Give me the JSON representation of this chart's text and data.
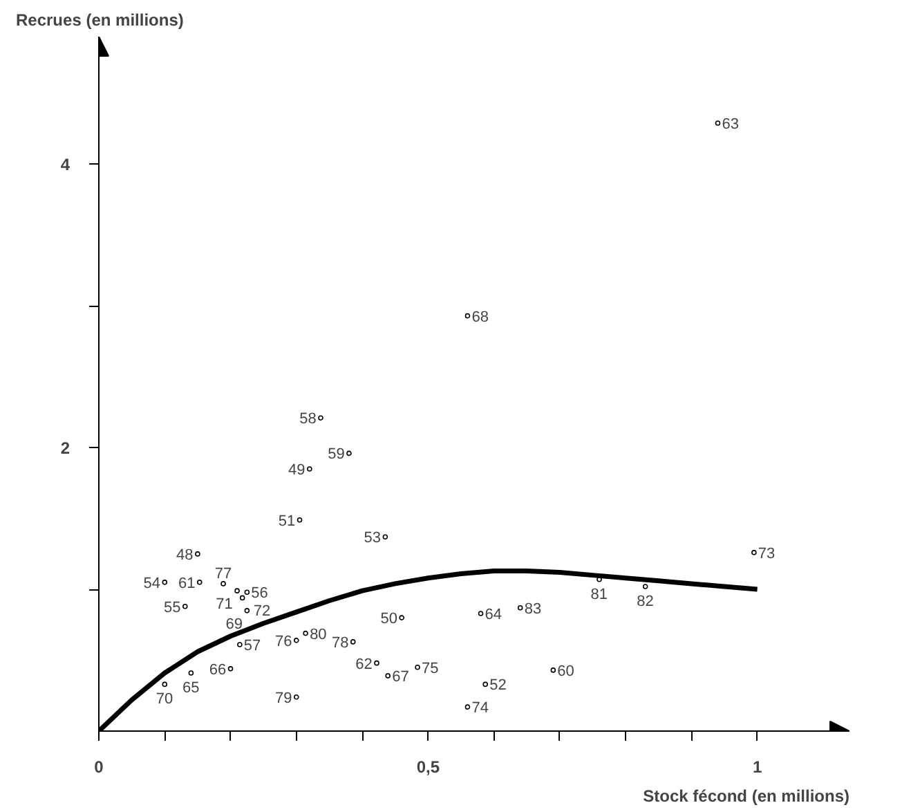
{
  "chart_data": {
    "type": "scatter",
    "xlabel": "Stock fécond (en millions)",
    "ylabel": "Recrues (en millions)",
    "xlim": [
      0,
      1.14
    ],
    "ylim": [
      0,
      4.9
    ],
    "xticks": [
      0,
      {
        "value": 0.1,
        "label": null
      },
      {
        "value": 0.2,
        "label": null
      },
      {
        "value": 0.3,
        "label": null
      },
      {
        "value": 0.4,
        "label": null
      },
      {
        "value": 0.5,
        "label": "0,5"
      },
      {
        "value": 0.6,
        "label": null
      },
      {
        "value": 0.7,
        "label": null
      },
      {
        "value": 0.8,
        "label": null
      },
      {
        "value": 0.9,
        "label": null
      },
      1
    ],
    "yticks": [
      {
        "value": 1,
        "label": null
      },
      2,
      {
        "value": 3,
        "label": null
      },
      4
    ],
    "grid": false,
    "series": [
      {
        "marker": "circle",
        "color": "#000000",
        "x": [
          0.94,
          0.56,
          0.337,
          0.38,
          0.32,
          0.305,
          0.435,
          0.15,
          0.1,
          0.153,
          0.189,
          0.21,
          0.225,
          0.218,
          0.225,
          0.131,
          0.214,
          0.314,
          0.3,
          0.386,
          0.46,
          0.422,
          0.439,
          0.484,
          0.2,
          0.14,
          0.1,
          0.3,
          0.76,
          0.83,
          0.58,
          0.64,
          0.69,
          0.587,
          0.56,
          0.995
        ],
        "values": [
          4.29,
          2.93,
          2.21,
          1.96,
          1.85,
          1.49,
          1.37,
          1.25,
          1.05,
          1.05,
          1.04,
          0.99,
          0.98,
          0.94,
          0.85,
          0.88,
          0.61,
          0.69,
          0.64,
          0.63,
          0.8,
          0.48,
          0.39,
          0.45,
          0.44,
          0.41,
          0.33,
          0.24,
          1.07,
          1.02,
          0.83,
          0.87,
          0.43,
          0.33,
          0.17,
          1.26
        ]
      },
      {
        "type": "line",
        "marker": "none",
        "color": "#000000",
        "line_style": "solid",
        "x": [
          0,
          0.05,
          0.1,
          0.15,
          0.2,
          0.25,
          0.3,
          0.35,
          0.4,
          0.45,
          0.5,
          0.55,
          0.6,
          0.65,
          0.7,
          0.75,
          0.8,
          0.85,
          0.9,
          0.95,
          1.0
        ],
        "values": [
          0,
          0.22,
          0.41,
          0.56,
          0.67,
          0.76,
          0.84,
          0.92,
          0.99,
          1.04,
          1.08,
          1.11,
          1.13,
          1.13,
          1.12,
          1.1,
          1.08,
          1.06,
          1.04,
          1.02,
          1.0
        ]
      }
    ],
    "annotations": [
      {
        "text": "63",
        "x": 0.94,
        "y": 4.29
      },
      {
        "text": "68",
        "x": 0.56,
        "y": 2.93
      },
      {
        "text": "58",
        "x": 0.337,
        "y": 2.21
      },
      {
        "text": "59",
        "x": 0.38,
        "y": 1.96
      },
      {
        "text": "49",
        "x": 0.32,
        "y": 1.85
      },
      {
        "text": "51",
        "x": 0.305,
        "y": 1.49
      },
      {
        "text": "53",
        "x": 0.435,
        "y": 1.37
      },
      {
        "text": "48",
        "x": 0.15,
        "y": 1.25
      },
      {
        "text": "54",
        "x": 0.1,
        "y": 1.05
      },
      {
        "text": "61",
        "x": 0.153,
        "y": 1.05
      },
      {
        "text": "77",
        "x": 0.189,
        "y": 1.04
      },
      {
        "text": "71",
        "x": 0.21,
        "y": 0.99
      },
      {
        "text": "56",
        "x": 0.225,
        "y": 0.98
      },
      {
        "text": "72",
        "x": 0.218,
        "y": 0.94
      },
      {
        "text": "69",
        "x": 0.225,
        "y": 0.85
      },
      {
        "text": "55",
        "x": 0.131,
        "y": 0.88
      },
      {
        "text": "57",
        "x": 0.214,
        "y": 0.61
      },
      {
        "text": "80",
        "x": 0.314,
        "y": 0.69
      },
      {
        "text": "76",
        "x": 0.3,
        "y": 0.64
      },
      {
        "text": "78",
        "x": 0.386,
        "y": 0.63
      },
      {
        "text": "50",
        "x": 0.46,
        "y": 0.8
      },
      {
        "text": "62",
        "x": 0.422,
        "y": 0.48
      },
      {
        "text": "67",
        "x": 0.439,
        "y": 0.39
      },
      {
        "text": "75",
        "x": 0.484,
        "y": 0.45
      },
      {
        "text": "66",
        "x": 0.2,
        "y": 0.44
      },
      {
        "text": "65",
        "x": 0.14,
        "y": 0.41
      },
      {
        "text": "70",
        "x": 0.1,
        "y": 0.33
      },
      {
        "text": "79",
        "x": 0.3,
        "y": 0.24
      },
      {
        "text": "81",
        "x": 0.76,
        "y": 1.07
      },
      {
        "text": "82",
        "x": 0.83,
        "y": 1.02
      },
      {
        "text": "64",
        "x": 0.58,
        "y": 0.83
      },
      {
        "text": "83",
        "x": 0.64,
        "y": 0.87
      },
      {
        "text": "60",
        "x": 0.69,
        "y": 0.43
      },
      {
        "text": "52",
        "x": 0.587,
        "y": 0.33
      },
      {
        "text": "74",
        "x": 0.56,
        "y": 0.17
      },
      {
        "text": "73",
        "x": 0.995,
        "y": 1.26
      }
    ]
  }
}
